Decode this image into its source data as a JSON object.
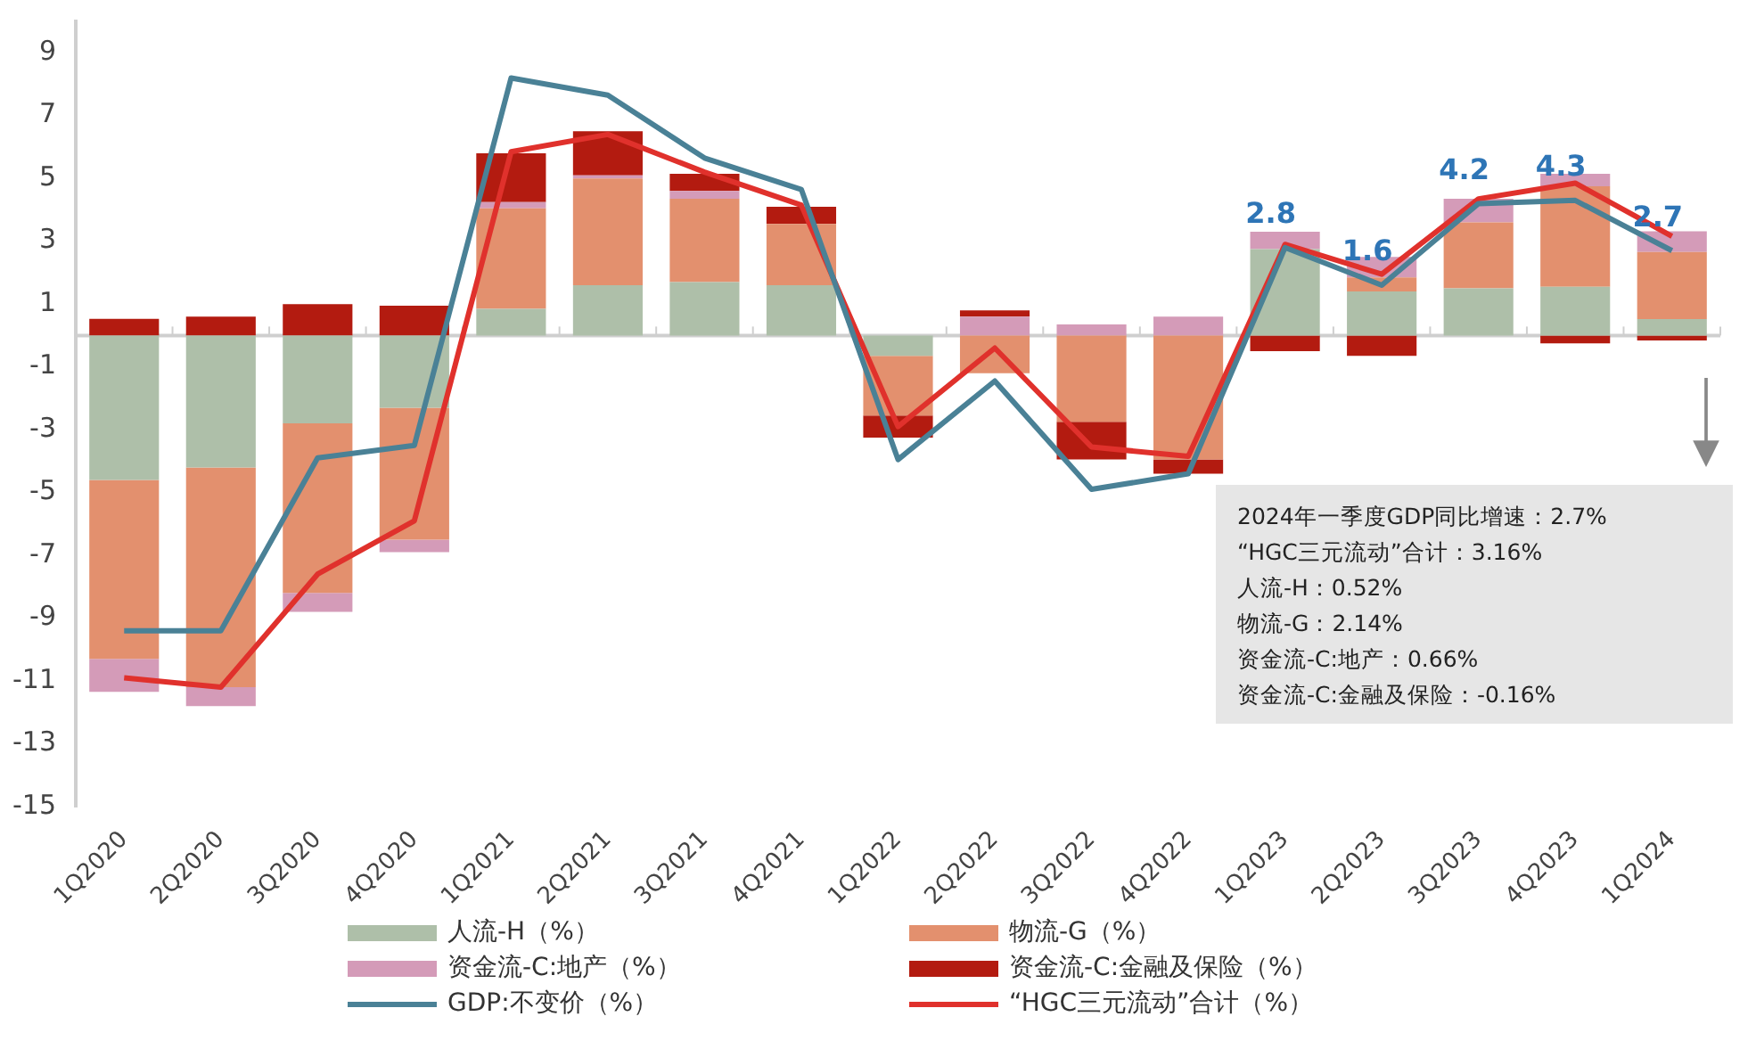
{
  "chart_data": {
    "type": "bar",
    "stacked": true,
    "categories": [
      "1Q2020",
      "2Q2020",
      "3Q2020",
      "4Q2020",
      "1Q2021",
      "2Q2021",
      "3Q2021",
      "4Q2021",
      "1Q2022",
      "2Q2022",
      "3Q2022",
      "4Q2022",
      "1Q2023",
      "2Q2023",
      "3Q2023",
      "4Q2023",
      "1Q2024"
    ],
    "series": [
      {
        "name": "人流-H（%）",
        "color": "#aebfa9",
        "values": [
          -4.6,
          -4.2,
          -2.8,
          -2.3,
          0.85,
          1.6,
          1.7,
          1.6,
          -0.65,
          0,
          0,
          0,
          2.75,
          1.4,
          1.5,
          1.55,
          0.52
        ]
      },
      {
        "name": "物流-G（%）",
        "color": "#e3906e",
        "values": [
          -5.7,
          -7.0,
          -5.4,
          -4.2,
          3.2,
          3.4,
          2.65,
          1.95,
          -1.9,
          -1.2,
          -2.75,
          -3.95,
          0,
          0.45,
          2.1,
          3.2,
          2.14
        ]
      },
      {
        "name": "资金流-C:地产（%）",
        "color": "#d49bb8",
        "values": [
          -1.05,
          -0.6,
          -0.6,
          -0.4,
          0.2,
          0.1,
          0.25,
          0,
          0,
          0.6,
          0.35,
          0.6,
          0.55,
          0.65,
          0.75,
          0.4,
          0.66
        ]
      },
      {
        "name": "资金流-C:金融及保险（%）",
        "color": "#b31b10",
        "values": [
          0.53,
          0.6,
          1.0,
          0.95,
          1.55,
          1.4,
          0.55,
          0.55,
          -0.7,
          0.2,
          -1.2,
          -0.45,
          -0.5,
          -0.65,
          0,
          -0.25,
          -0.16
        ]
      },
      {
        "name": "GDP:不变价（%）",
        "color": "#4a8196",
        "type": "line",
        "values": [
          -9.4,
          -9.4,
          -3.9,
          -3.5,
          8.2,
          7.65,
          5.65,
          4.65,
          -3.95,
          -1.45,
          -4.9,
          -4.4,
          2.8,
          1.6,
          4.2,
          4.3,
          2.7
        ],
        "value_labels": [
          null,
          null,
          null,
          null,
          null,
          null,
          null,
          null,
          null,
          null,
          null,
          null,
          "2.8",
          "1.6",
          "4.2",
          "4.3",
          "2.7"
        ]
      },
      {
        "name": "“HGC三元流动”合计（%）",
        "color": "#e0312c",
        "type": "line",
        "values": [
          -10.9,
          -11.2,
          -7.6,
          -5.9,
          5.85,
          6.4,
          5.2,
          4.15,
          -2.9,
          -0.4,
          -3.55,
          -3.85,
          2.9,
          1.95,
          4.35,
          4.85,
          3.16
        ]
      }
    ],
    "ylim": [
      -15,
      10
    ],
    "yticks": [
      9,
      7,
      5,
      3,
      1,
      -1,
      -3,
      -5,
      -7,
      -9,
      -11,
      -13,
      -15
    ],
    "grid": false,
    "legend": "bottom",
    "marker": "none",
    "annotations": [
      "2024年一季度GDP同比增速：2.7%",
      "“HGC三元流动”合计：3.16%",
      "人流-H：0.52%",
      "物流-G：2.14%",
      "资金流-C:地产：0.66%",
      "资金流-C:金融及保险：-0.16%"
    ]
  }
}
